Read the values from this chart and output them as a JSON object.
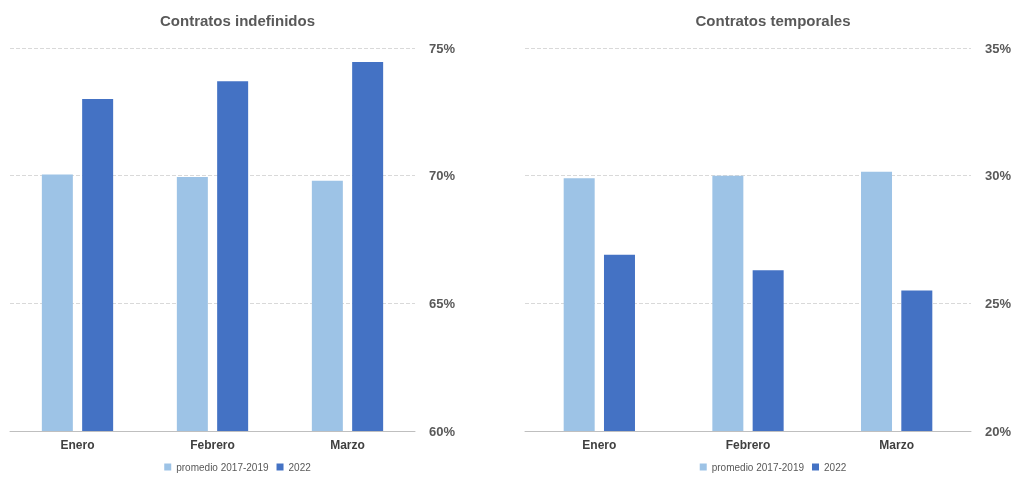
{
  "chart_data": [
    {
      "type": "bar",
      "title": "Contratos indefinidos",
      "categories": [
        "Enero",
        "Febrero",
        "Marzo"
      ],
      "series": [
        {
          "name": "promedio 2017-2019",
          "color": "#9dc3e6",
          "values": [
            70.05,
            69.95,
            69.8
          ]
        },
        {
          "name": "2022",
          "color": "#4472c4",
          "values": [
            73.0,
            73.7,
            74.45
          ]
        }
      ],
      "ylim": [
        60,
        75
      ],
      "yticks": [
        {
          "value": 60,
          "label": "60%"
        },
        {
          "value": 65,
          "label": "65%"
        },
        {
          "value": 70,
          "label": "70%"
        },
        {
          "value": 75,
          "label": "75%"
        }
      ],
      "grid": "y",
      "legend": "bottom"
    },
    {
      "type": "bar",
      "title": "Contratos temporales",
      "categories": [
        "Enero",
        "Febrero",
        "Marzo"
      ],
      "series": [
        {
          "name": "promedio 2017-2019",
          "color": "#9dc3e6",
          "values": [
            29.9,
            30.0,
            30.15
          ]
        },
        {
          "name": "2022",
          "color": "#4472c4",
          "values": [
            26.9,
            26.3,
            25.5
          ]
        }
      ],
      "ylim": [
        20,
        35
      ],
      "yticks": [
        {
          "value": 20,
          "label": "20%"
        },
        {
          "value": 25,
          "label": "25%"
        },
        {
          "value": 30,
          "label": "30%"
        },
        {
          "value": 35,
          "label": "35%"
        }
      ],
      "grid": "y",
      "legend": "bottom"
    }
  ]
}
